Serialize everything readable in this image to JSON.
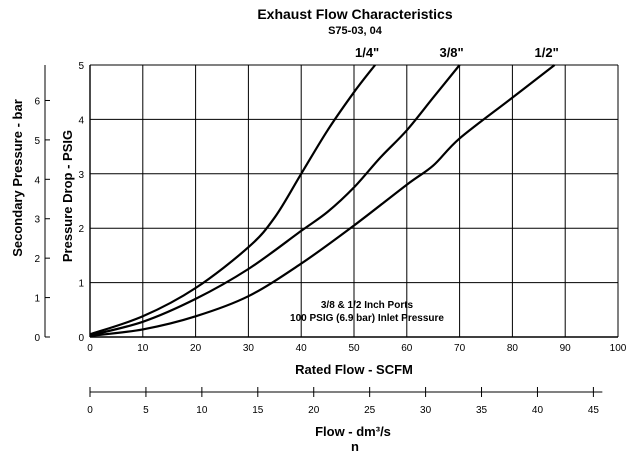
{
  "chart_data": {
    "type": "line",
    "title": "Exhaust Flow Characteristics",
    "subtitle": "S75-03, 04",
    "xlabel": "Rated Flow - SCFM",
    "ylabel": "Pressure Drop - PSIG",
    "y2label": "Secondary Pressure - bar",
    "x2label": "Flow - dm³/s",
    "x2sub": "n",
    "xlim": [
      0,
      100
    ],
    "ylim": [
      0,
      5
    ],
    "y2lim": [
      0,
      6.9
    ],
    "x2lim": [
      0,
      47.2
    ],
    "grid": true,
    "xticks": [
      "0",
      "10",
      "20",
      "30",
      "40",
      "50",
      "60",
      "70",
      "80",
      "90",
      "100"
    ],
    "yticks": [
      "0",
      "1",
      "2",
      "3",
      "4",
      "5"
    ],
    "y2ticks": [
      "0",
      "1",
      "2",
      "3",
      "4",
      "5",
      "6"
    ],
    "x2ticks": [
      "0",
      "5",
      "10",
      "15",
      "20",
      "25",
      "30",
      "35",
      "40",
      "45"
    ],
    "annotation": [
      "3/8 & 1/2 Inch Ports",
      "100 PSIG (6.9 bar) Inlet Pressure"
    ],
    "series": [
      {
        "name": "1/4\"",
        "x": [
          0,
          10,
          20,
          30,
          35,
          40,
          45,
          50,
          54
        ],
        "y": [
          0.05,
          0.38,
          0.9,
          1.65,
          2.2,
          3.0,
          3.8,
          4.5,
          5.0
        ]
      },
      {
        "name": "3/8\"",
        "x": [
          0,
          10,
          20,
          30,
          40,
          45,
          50,
          55,
          60,
          65,
          70
        ],
        "y": [
          0.03,
          0.28,
          0.7,
          1.25,
          1.95,
          2.3,
          2.75,
          3.3,
          3.8,
          4.4,
          5.0
        ]
      },
      {
        "name": "1/2\"",
        "x": [
          0,
          10,
          20,
          30,
          40,
          50,
          60,
          65,
          70,
          80,
          88
        ],
        "y": [
          0.02,
          0.14,
          0.38,
          0.75,
          1.35,
          2.05,
          2.8,
          3.15,
          3.65,
          4.4,
          5.0
        ]
      }
    ]
  }
}
